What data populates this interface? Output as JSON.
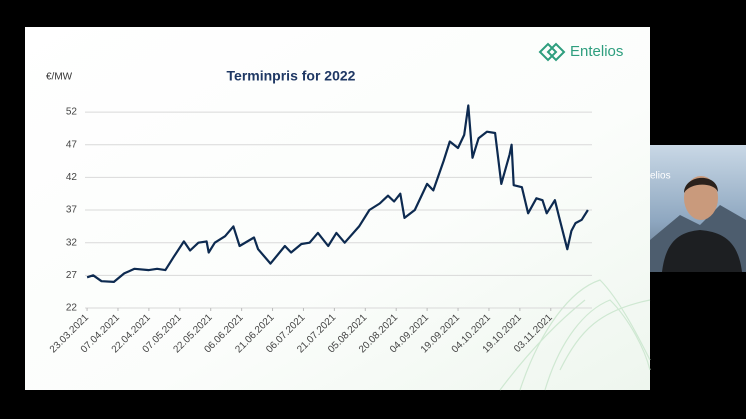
{
  "chart_data": {
    "type": "line",
    "title": "Terminpris for 2022",
    "y_label": "€/MW",
    "x": [
      "23.03.2021",
      "26.03.2021",
      "30.03.2021",
      "05.04.2021",
      "10.04.2021",
      "15.04.2021",
      "22.04.2021",
      "26.04.2021",
      "30.04.2021",
      "04.05.2021",
      "09.05.2021",
      "12.05.2021",
      "16.05.2021",
      "20.05.2021",
      "21.05.2021",
      "24.05.2021",
      "29.05.2021",
      "02.06.2021",
      "05.06.2021",
      "12.06.2021",
      "14.06.2021",
      "20.06.2021",
      "27.06.2021",
      "30.06.2021",
      "05.07.2021",
      "09.07.2021",
      "13.07.2021",
      "18.07.2021",
      "22.07.2021",
      "26.07.2021",
      "02.08.2021",
      "07.08.2021",
      "12.08.2021",
      "16.08.2021",
      "19.08.2021",
      "22.08.2021",
      "24.08.2021",
      "29.08.2021",
      "04.09.2021",
      "07.09.2021",
      "12.09.2021",
      "15.09.2021",
      "19.09.2021",
      "22.09.2021",
      "24.09.2021",
      "26.09.2021",
      "29.09.2021",
      "03.10.2021",
      "07.10.2021",
      "10.10.2021",
      "14.10.2021",
      "15.10.2021",
      "16.10.2021",
      "20.10.2021",
      "23.10.2021",
      "27.10.2021",
      "30.10.2021",
      "01.11.2021",
      "05.11.2021",
      "07.11.2021",
      "11.11.2021",
      "13.11.2021",
      "15.11.2021",
      "18.11.2021",
      "21.11.2021"
    ],
    "series": [
      {
        "name": "Terminpris 2022",
        "color": "#0d2a50",
        "values": [
          26.7,
          27,
          26.1,
          26.0,
          27.3,
          28.0,
          27.8,
          28.0,
          27.8,
          29.8,
          32.2,
          30.8,
          32.0,
          32.2,
          30.5,
          32,
          33,
          34.5,
          31.5,
          32.8,
          31,
          28.8,
          31.5,
          30.5,
          31.8,
          32,
          33.5,
          31.5,
          33.5,
          32,
          34.5,
          37,
          38,
          39.2,
          38.3,
          39.5,
          35.8,
          37,
          41,
          40,
          44.5,
          47.5,
          46.5,
          48.5,
          53,
          45,
          48,
          49,
          48.8,
          41,
          45.5,
          47,
          40.8,
          40.5,
          36.5,
          38.8,
          38.5,
          36.5,
          38.5,
          36,
          31,
          33.8,
          35,
          35.5,
          37
        ]
      }
    ],
    "xlim": [
      "22.03.2021",
      "23.11.2021"
    ],
    "xticks": [
      "23.03.2021",
      "07.04.2021",
      "22.04.2021",
      "07.05.2021",
      "22.05.2021",
      "06.06.2021",
      "21.06.2021",
      "06.07.2021",
      "21.07.2021",
      "05.08.2021",
      "20.08.2021",
      "04.09.2021",
      "19.09.2021",
      "04.10.2021",
      "19.10.2021",
      "03.11.2021"
    ],
    "ylim": [
      22,
      54
    ],
    "yticks": [
      22,
      27,
      32,
      37,
      42,
      47,
      52
    ],
    "grid": true
  },
  "logo": "Entelios",
  "webcam_label": "elios"
}
